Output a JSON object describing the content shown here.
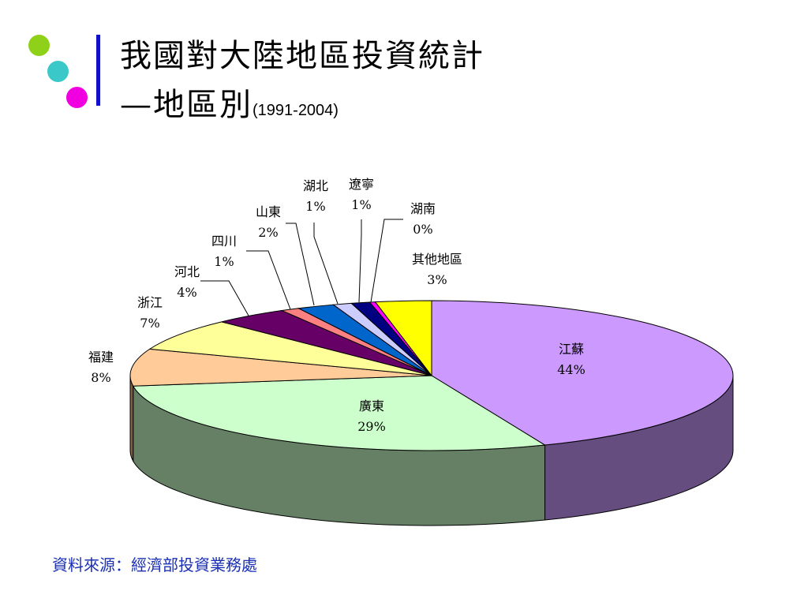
{
  "slide": {
    "title_line1": "我國對大陸地區投資統計",
    "title_line2_main": "—地區別",
    "title_line2_small": "(1991-2004)",
    "source": "資料來源：經濟部投資業務處",
    "accent_colors": {
      "bar": "#1010c8",
      "dot_green": "#8fd018",
      "dot_cyan": "#3bc8c8",
      "dot_magenta": "#f000e0"
    }
  },
  "chart_data": {
    "type": "pie",
    "start_angle_deg": -90,
    "slices": [
      {
        "name": "江蘇",
        "value": 44,
        "label": "44%",
        "color": "#cc99ff",
        "side": "#664d80"
      },
      {
        "name": "廣東",
        "value": 29,
        "label": "29%",
        "color": "#ccffcc",
        "side": "#668066"
      },
      {
        "name": "福建",
        "value": 8,
        "label": "8%",
        "color": "#ffcc99",
        "side": "#806040"
      },
      {
        "name": "浙江",
        "value": 7,
        "label": "7%",
        "color": "#ffff99",
        "side": "#80804d"
      },
      {
        "name": "河北",
        "value": 4,
        "label": "4%",
        "color": "#660066",
        "side": "#330033"
      },
      {
        "name": "四川",
        "value": 1,
        "label": "1%",
        "color": "#ff8080",
        "side": "#804040"
      },
      {
        "name": "山東",
        "value": 2,
        "label": "2%",
        "color": "#0066cc",
        "side": "#003366"
      },
      {
        "name": "湖北",
        "value": 1,
        "label": "1%",
        "color": "#ccccff",
        "side": "#666680"
      },
      {
        "name": "遼寧",
        "value": 1,
        "label": "1%",
        "color": "#000080",
        "side": "#000040"
      },
      {
        "name": "湖南",
        "value": 0.3,
        "label": "0%",
        "color": "#ff00ff",
        "side": "#800080"
      },
      {
        "name": "其他地區",
        "value": 3,
        "label": "3%",
        "color": "#ffff00",
        "side": "#808000"
      }
    ]
  }
}
